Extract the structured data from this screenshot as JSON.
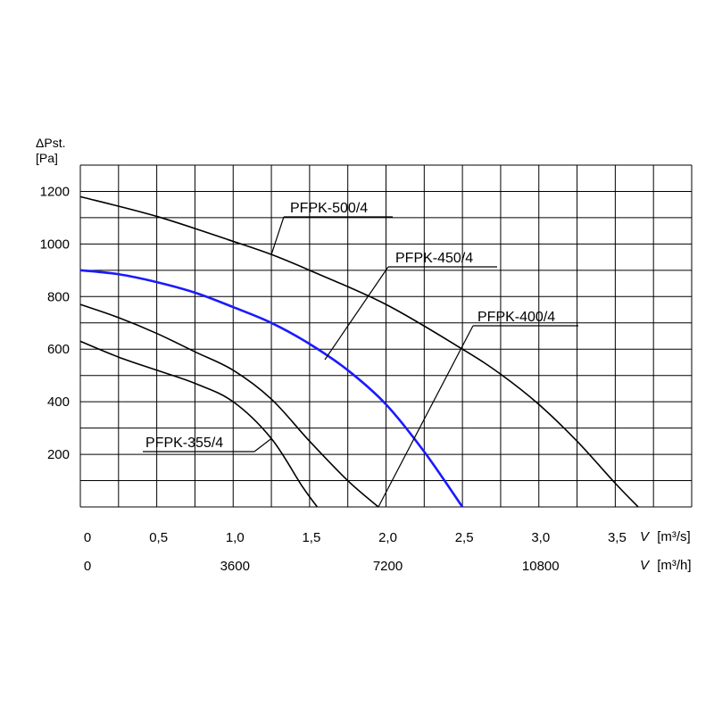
{
  "chart_data": {
    "type": "line",
    "y_axis": {
      "title_symbol": "ΔPst.",
      "unit": "[Pa]",
      "ticks": [
        "200",
        "400",
        "600",
        "800",
        "1000",
        "1200"
      ],
      "tick_values": [
        200,
        400,
        600,
        800,
        1000,
        1200
      ],
      "ylim": [
        0,
        1300
      ]
    },
    "x_axis_primary": {
      "symbol": "V",
      "unit": "[m³/s]",
      "ticks": [
        "0",
        "0,5",
        "1,0",
        "1,5",
        "2,0",
        "2,5",
        "3,0",
        "3,5"
      ],
      "tick_values": [
        0,
        0.5,
        1.0,
        1.5,
        2.0,
        2.5,
        3.0,
        3.5
      ],
      "xlim": [
        0,
        4.0
      ]
    },
    "x_axis_secondary": {
      "symbol": "V",
      "unit": "[m³/h]",
      "ticks": [
        "0",
        "3600",
        "7200",
        "10800"
      ],
      "tick_values": [
        0,
        1.0,
        2.0,
        3.0
      ]
    },
    "grid": true,
    "series": [
      {
        "name": "PFPK-500/4",
        "color": "#000000",
        "x": [
          0,
          0.5,
          1.0,
          1.25,
          1.5,
          2.0,
          2.5,
          2.75,
          3.0,
          3.25,
          3.5,
          3.65
        ],
        "y": [
          1180,
          1105,
          1010,
          960,
          900,
          770,
          600,
          505,
          390,
          250,
          90,
          0
        ]
      },
      {
        "name": "PFPK-450/4",
        "color": "#1a1aff",
        "x": [
          0,
          0.25,
          0.5,
          0.75,
          1.0,
          1.25,
          1.5,
          1.75,
          2.0,
          2.25,
          2.5
        ],
        "y": [
          900,
          885,
          855,
          815,
          760,
          700,
          620,
          520,
          390,
          210,
          0
        ]
      },
      {
        "name": "PFPK-400/4",
        "color": "#000000",
        "x": [
          0,
          0.25,
          0.5,
          0.75,
          1.0,
          1.25,
          1.5,
          1.75,
          1.95
        ],
        "y": [
          770,
          720,
          660,
          590,
          520,
          410,
          250,
          100,
          0
        ]
      },
      {
        "name": "PFPK-355/4",
        "color": "#000000",
        "x": [
          0,
          0.25,
          0.5,
          0.75,
          1.0,
          1.25,
          1.45,
          1.55
        ],
        "y": [
          630,
          570,
          520,
          470,
          400,
          260,
          80,
          0
        ]
      }
    ],
    "annotations": [
      {
        "text": "PFPK-500/4",
        "series": "PFPK-500/4",
        "point": [
          1.25,
          960
        ]
      },
      {
        "text": "PFPK-450/4",
        "series": "PFPK-450/4",
        "point": [
          1.6,
          560
        ]
      },
      {
        "text": "PFPK-400/4",
        "series": "PFPK-400/4",
        "point": [
          1.95,
          0
        ]
      },
      {
        "text": "PFPK-355/4",
        "series": "PFPK-355/4",
        "point": [
          1.25,
          260
        ]
      }
    ]
  }
}
